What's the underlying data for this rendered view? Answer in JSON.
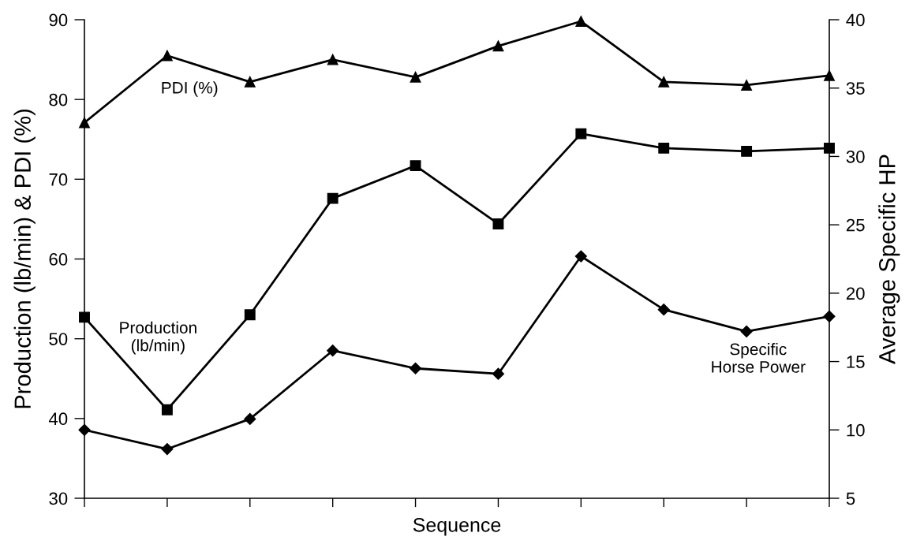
{
  "chart_data": {
    "type": "line",
    "xlabel": "Sequence",
    "ylabel": "Production (lb/min) & PDI (%)",
    "y2label": "Average Specific HP",
    "categories": [
      null,
      null,
      null,
      null,
      null,
      null,
      null,
      null,
      null,
      null
    ],
    "series": [
      {
        "name": "PDI (%)",
        "color": "#000000",
        "marker": "triangle",
        "values": [
          77.1,
          85.5,
          82.2,
          85.0,
          82.8,
          86.7,
          89.8,
          82.2,
          81.8,
          83.0
        ]
      },
      {
        "name": "Production\n(lb/min)",
        "color": "#000000",
        "marker": "square",
        "values": [
          52.7,
          41.1,
          53.0,
          67.6,
          71.7,
          64.4,
          75.7,
          73.9,
          73.5,
          73.9
        ]
      },
      {
        "name": "Specific\nHorse Power",
        "color": "#000000",
        "marker": "diamond",
        "axis": "y2",
        "values": [
          10.0,
          8.6,
          10.8,
          15.8,
          14.5,
          14.1,
          22.7,
          18.8,
          17.2,
          18.3
        ]
      }
    ],
    "ylim": [
      30,
      90
    ],
    "yticks": [
      30,
      40,
      50,
      60,
      70,
      80,
      90
    ],
    "y2lim": [
      5,
      40
    ],
    "y2ticks": [
      5,
      10,
      15,
      20,
      25,
      30,
      35,
      40
    ],
    "grid": false,
    "line_style": "solid"
  }
}
